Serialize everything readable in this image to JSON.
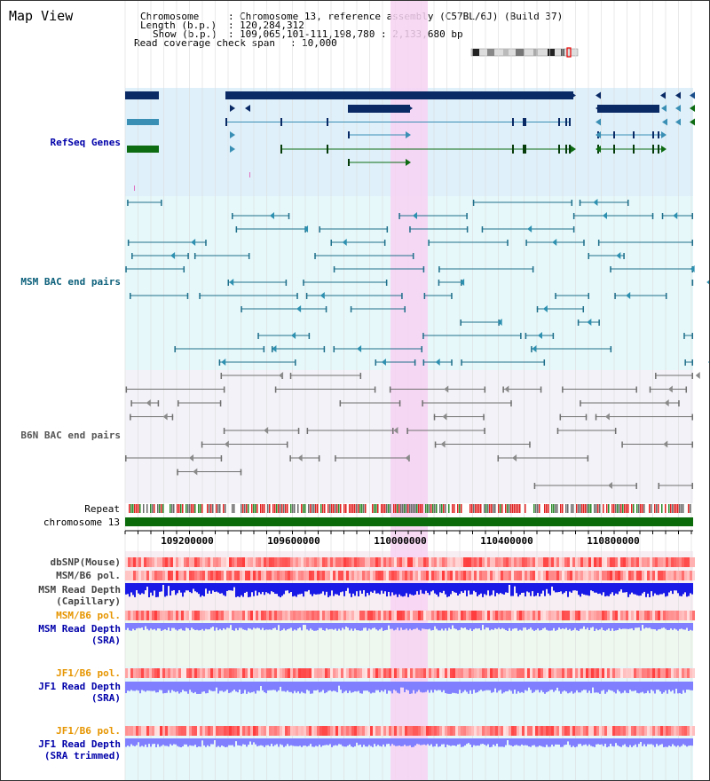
{
  "page": {
    "title": "Map View"
  },
  "info": {
    "chromosome_key": "Chromosome",
    "chromosome_val": "Chromosome 13, reference assembly (C57BL/6J) (Build 37)",
    "length_key": "Length (b.p.)",
    "length_val": "120,284,312",
    "show_key": "Show (b.p.)",
    "show_val": "109,065,101-111,198,780 : 2,133,680 bp",
    "coverage_key": "Read coverage check span",
    "coverage_val": "10,000"
  },
  "tracks": {
    "refseq": "RefSeq Genes",
    "msm_bac": "MSM BAC end pairs",
    "b6n_bac": "B6N BAC end pairs",
    "repeat": "Repeat",
    "chromosome": "chromosome 13",
    "dbsnp": "dbSNP(Mouse)",
    "msm_b6_pol_1": "MSM/B6 pol.",
    "msm_read_depth_cap": "MSM Read Depth",
    "msm_read_depth_cap_sub": "(Capillary)",
    "msm_b6_pol_2": "MSM/B6 pol.",
    "msm_read_depth_sra": "MSM Read Depth",
    "msm_read_depth_sra_sub": "(SRA)",
    "jf1_b6_pol_1": "JF1/B6 pol.",
    "jf1_read_depth_sra": "JF1 Read Depth",
    "jf1_read_depth_sra_sub": "(SRA)",
    "jf1_b6_pol_2": "JF1/B6 pol.",
    "jf1_read_depth_trim": "JF1 Read Depth",
    "jf1_read_depth_trim_sub": "(SRA trimmed)"
  },
  "axis": {
    "ticks": [
      "109200000",
      "109600000",
      "110000000",
      "110400000",
      "110800000"
    ]
  },
  "colors": {
    "refseq_bg": "#dff0fa",
    "msm_bg": "#e6f8fa",
    "b6n_bg": "#f2f2f8",
    "highlight": "#f7d2f2",
    "label_blue": "#0000aa",
    "label_teal": "#0b5f7a",
    "label_orange": "#e69500",
    "gene_navy": "#0a2a66",
    "gene_teal": "#3a8fb5",
    "gene_green": "#0d6b12",
    "chrom_green": "#0b6b0b",
    "depth_blue": "#1a1ae6",
    "depth_light": "#8080ff",
    "snp_red": "#ff3333"
  }
}
